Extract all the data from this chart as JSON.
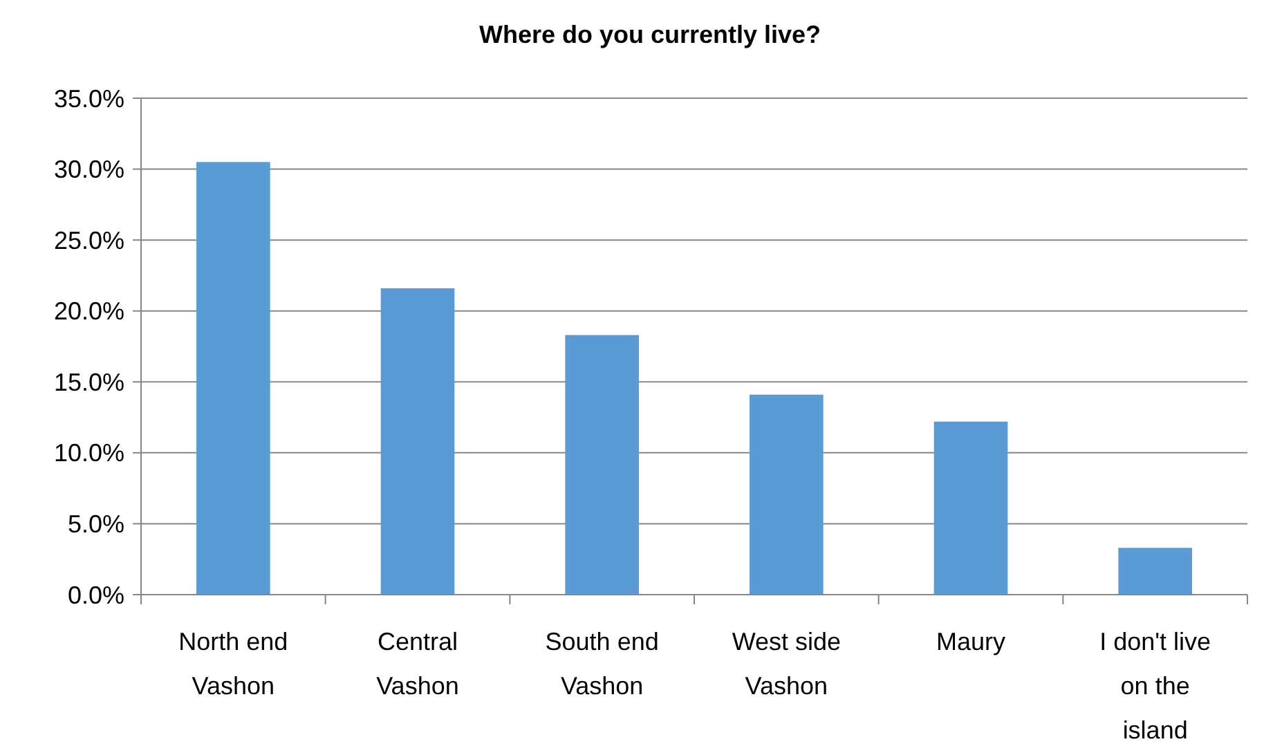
{
  "chart_data": {
    "type": "bar",
    "title": "Where do you currently live?",
    "categories": [
      "North end Vashon",
      "Central Vashon",
      "South end Vashon",
      "West side Vashon",
      "Maury",
      "I don't live on the island"
    ],
    "values": [
      30.5,
      21.6,
      18.3,
      14.1,
      12.2,
      3.3
    ],
    "color": "#5b9bd5",
    "ylim": [
      0,
      35
    ],
    "yticks": [
      {
        "value": 0,
        "label": "0.0%"
      },
      {
        "value": 5,
        "label": "5.0%"
      },
      {
        "value": 10,
        "label": "10.0%"
      },
      {
        "value": 15,
        "label": "15.0%"
      },
      {
        "value": 20,
        "label": "20.0%"
      },
      {
        "value": 25,
        "label": "25.0%"
      },
      {
        "value": 30,
        "label": "30.0%"
      },
      {
        "value": 35,
        "label": "35.0%"
      }
    ],
    "grid": "y"
  }
}
